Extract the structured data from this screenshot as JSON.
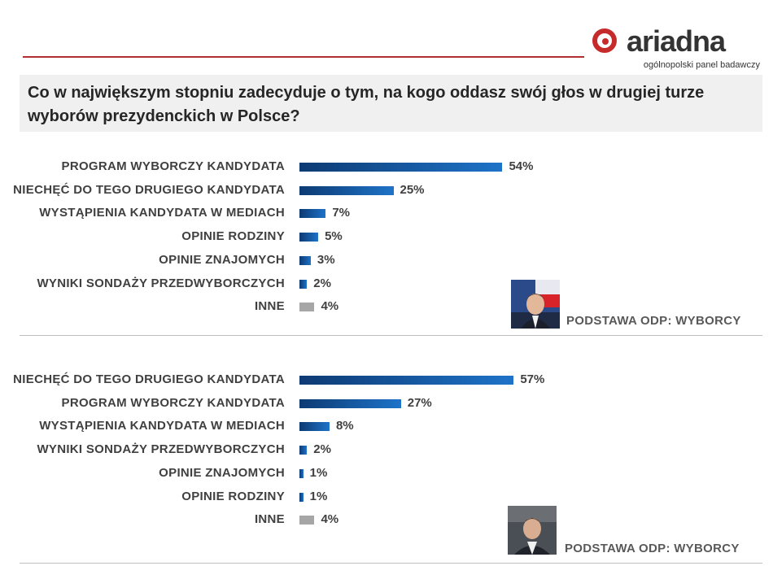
{
  "logo": {
    "name": "ariadna",
    "subtitle": "ogólnopolski panel badawczy"
  },
  "question": "Co w największym stopniu zadecyduje o tym, na kogo oddasz swój głos w drugiej turze wyborów prezydenckich w Polsce?",
  "colors": {
    "bar_blue": "#1e73c8",
    "bar_gray": "#a6a6a6",
    "accent_red": "#c62b2b"
  },
  "chart_data": [
    {
      "type": "bar",
      "orientation": "horizontal",
      "categories": [
        "PROGRAM WYBORCZY KANDYDATA",
        "NIECHĘĆ DO TEGO DRUGIEGO KANDYDATA",
        "WYSTĄPIENIA KANDYDATA W MEDIACH",
        "OPINIE RODZINY",
        "OPINIE ZNAJOMYCH",
        "WYNIKI SONDAŻY PRZEDWYBORCZYCH",
        "INNE"
      ],
      "values": [
        54,
        25,
        7,
        5,
        3,
        2,
        4
      ],
      "value_labels": [
        "54%",
        "25%",
        "7%",
        "5%",
        "3%",
        "2%",
        "4%"
      ],
      "note": "PODSTAWA ODP: WYBORCY"
    },
    {
      "type": "bar",
      "orientation": "horizontal",
      "categories": [
        "NIECHĘĆ DO TEGO DRUGIEGO KANDYDATA",
        "PROGRAM WYBORCZY KANDYDATA",
        "WYSTĄPIENIA KANDYDATA W MEDIACH",
        "WYNIKI SONDAŻY PRZEDWYBORCZYCH",
        "OPINIE ZNAJOMYCH",
        "OPINIE RODZINY",
        "INNE"
      ],
      "values": [
        57,
        27,
        8,
        2,
        1,
        1,
        4
      ],
      "value_labels": [
        "57%",
        "27%",
        "8%",
        "2%",
        "1%",
        "1%",
        "4%"
      ],
      "note": "PODSTAWA ODP: WYBORCY"
    }
  ]
}
